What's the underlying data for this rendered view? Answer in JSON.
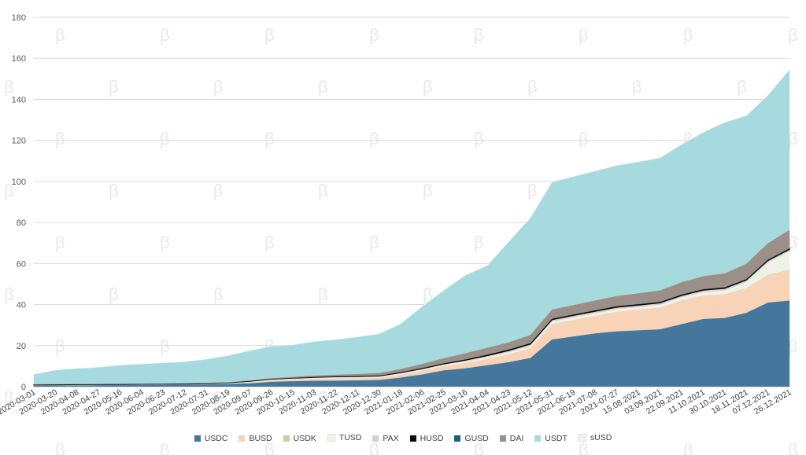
{
  "chart_data": {
    "type": "area",
    "stacked": true,
    "grid": "horizontal",
    "legend_position": "bottom",
    "ylim": [
      0,
      180
    ],
    "yticks": [
      0,
      20,
      40,
      60,
      80,
      100,
      120,
      140,
      160,
      180
    ],
    "x_tick_labels": [
      "2020-03-01",
      "2020-03-20",
      "2020-04-08",
      "2020-04-27",
      "2020-05-16",
      "2020-06-04",
      "2020-06-23",
      "2020-07-12",
      "2020-07-31",
      "2020-08-19",
      "2020-09-07",
      "2020-09-26",
      "2020-10-15",
      "2020-11-03",
      "2020-11-22",
      "2020-12-11",
      "2020-12-30",
      "2021-01-18",
      "2021-02-06",
      "2021-02-25",
      "2021-03-16",
      "2021-04-04",
      "2021-04-23",
      "2021-05-12",
      "2021-05-31",
      "2021-06-19",
      "2021-07-08",
      "2021-07-27",
      "15.08.2021",
      "03.09.2021",
      "22.09.2021",
      "11.10.2021",
      "30.10.2021",
      "18.11.2021",
      "07.12.2021",
      "26.12.2021"
    ],
    "x": [
      "2020-03-01",
      "2020-03-20",
      "2020-04-08",
      "2020-04-27",
      "2020-05-16",
      "2020-06-04",
      "2020-06-23",
      "2020-07-12",
      "2020-07-31",
      "2020-08-19",
      "2020-09-07",
      "2020-09-26",
      "2020-10-15",
      "2020-11-03",
      "2020-11-22",
      "2020-12-11",
      "2020-12-30",
      "2021-01-18",
      "2021-02-06",
      "2021-02-25",
      "2021-03-16",
      "2021-04-04",
      "2021-04-23",
      "2021-05-12",
      "2021-05-31",
      "2021-06-19",
      "2021-07-08",
      "2021-07-27",
      "2021-08-15",
      "2021-09-03",
      "2021-09-22",
      "2021-10-11",
      "2021-10-30",
      "2021-11-18",
      "2021-12-07",
      "2021-12-26"
    ],
    "series": [
      {
        "name": "USDC",
        "color": "#44779b",
        "values": [
          0.5,
          0.6,
          0.7,
          0.75,
          0.8,
          0.85,
          0.9,
          1.0,
          1.1,
          1.3,
          1.7,
          2.4,
          2.7,
          2.9,
          3.0,
          3.1,
          3.3,
          4.5,
          6.0,
          8.0,
          9.0,
          10.5,
          12.0,
          14.0,
          23.0,
          24.5,
          26.0,
          27.0,
          27.5,
          28.0,
          30.5,
          33.0,
          33.5,
          36.0,
          41.0,
          42.0
        ]
      },
      {
        "name": "BUSD",
        "color": "#f8d3b7",
        "values": [
          0.1,
          0.1,
          0.1,
          0.1,
          0.1,
          0.1,
          0.1,
          0.1,
          0.15,
          0.2,
          0.4,
          0.6,
          0.8,
          0.9,
          1.0,
          1.0,
          1.1,
          1.3,
          1.7,
          2.0,
          2.5,
          3.0,
          3.8,
          4.8,
          7.5,
          8.0,
          8.5,
          9.5,
          10.0,
          10.5,
          11.5,
          11.5,
          11.5,
          12.0,
          13.5,
          15.0
        ]
      },
      {
        "name": "USDK",
        "color": "#c6cfa2",
        "values": [
          0.02,
          0.02,
          0.02,
          0.02,
          0.02,
          0.02,
          0.02,
          0.02,
          0.02,
          0.02,
          0.02,
          0.02,
          0.02,
          0.02,
          0.02,
          0.02,
          0.02,
          0.02,
          0.02,
          0.02,
          0.02,
          0.02,
          0.02,
          0.02,
          0.02,
          0.02,
          0.02,
          0.02,
          0.02,
          0.02,
          0.02,
          0.02,
          0.02,
          0.02,
          0.02,
          0.02
        ]
      },
      {
        "name": "TUSD",
        "color": "#eef3e8",
        "values": [
          0.1,
          0.1,
          0.1,
          0.1,
          0.1,
          0.1,
          0.1,
          0.1,
          0.1,
          0.2,
          0.3,
          0.4,
          0.4,
          0.4,
          0.5,
          0.5,
          0.5,
          0.6,
          0.6,
          0.6,
          0.8,
          0.9,
          1.0,
          1.1,
          1.2,
          1.3,
          1.3,
          1.3,
          1.3,
          1.4,
          1.5,
          1.6,
          2.0,
          3.0,
          6.0,
          9.0
        ]
      },
      {
        "name": "PAX",
        "color": "#d9cccc",
        "values": [
          0.1,
          0.1,
          0.1,
          0.1,
          0.1,
          0.1,
          0.1,
          0.1,
          0.1,
          0.1,
          0.2,
          0.2,
          0.2,
          0.3,
          0.3,
          0.3,
          0.3,
          0.4,
          0.5,
          0.5,
          0.6,
          0.7,
          0.8,
          0.8,
          0.9,
          0.9,
          0.9,
          0.9,
          0.9,
          0.9,
          0.9,
          0.9,
          0.9,
          0.9,
          0.9,
          0.9
        ]
      },
      {
        "name": "HUSD",
        "color": "#0a0a0a",
        "values": [
          0.2,
          0.2,
          0.2,
          0.2,
          0.2,
          0.2,
          0.2,
          0.2,
          0.2,
          0.2,
          0.2,
          0.2,
          0.2,
          0.25,
          0.25,
          0.25,
          0.25,
          0.3,
          0.3,
          0.3,
          0.4,
          0.5,
          0.5,
          0.5,
          0.5,
          0.5,
          0.5,
          0.5,
          0.5,
          0.5,
          0.5,
          0.5,
          0.5,
          0.5,
          0.5,
          0.5
        ]
      },
      {
        "name": "GUSD",
        "color": "#1f5f84",
        "values": [
          0.02,
          0.02,
          0.02,
          0.02,
          0.02,
          0.02,
          0.02,
          0.02,
          0.02,
          0.02,
          0.02,
          0.02,
          0.02,
          0.02,
          0.02,
          0.02,
          0.02,
          0.02,
          0.02,
          0.02,
          0.02,
          0.02,
          0.02,
          0.02,
          0.02,
          0.02,
          0.02,
          0.02,
          0.02,
          0.02,
          0.02,
          0.02,
          0.02,
          0.02,
          0.02,
          0.02
        ]
      },
      {
        "name": "DAI",
        "color": "#9b8f87",
        "values": [
          0.1,
          0.1,
          0.1,
          0.1,
          0.1,
          0.1,
          0.1,
          0.1,
          0.1,
          0.1,
          0.2,
          0.3,
          0.5,
          0.7,
          0.8,
          1.0,
          1.2,
          1.5,
          2.0,
          2.5,
          3.0,
          3.3,
          3.5,
          4.0,
          4.5,
          4.6,
          4.8,
          5.0,
          5.3,
          5.6,
          6.0,
          6.3,
          6.8,
          7.5,
          8.0,
          9.0
        ]
      },
      {
        "name": "USDT",
        "color": "#a6dadf",
        "values": [
          4.8,
          6.8,
          7.5,
          8.0,
          9.0,
          9.5,
          10.0,
          10.5,
          11.5,
          13.0,
          14.5,
          15.5,
          15.5,
          16.5,
          17.0,
          18.0,
          19.0,
          22.0,
          28.0,
          33.0,
          38.0,
          40.0,
          49.0,
          57.0,
          62.0,
          62.5,
          63.0,
          63.5,
          64.0,
          64.5,
          67.0,
          70.0,
          73.5,
          72.0,
          72.0,
          78.0
        ]
      },
      {
        "name": "sUSD",
        "color": "#f2f2f2",
        "values": [
          0.1,
          0.1,
          0.1,
          0.1,
          0.1,
          0.1,
          0.1,
          0.1,
          0.1,
          0.1,
          0.1,
          0.1,
          0.1,
          0.1,
          0.1,
          0.1,
          0.1,
          0.1,
          0.2,
          0.2,
          0.2,
          0.2,
          0.2,
          0.2,
          0.2,
          0.2,
          0.2,
          0.2,
          0.2,
          0.2,
          0.2,
          0.2,
          0.2,
          0.2,
          0.2,
          0.2
        ]
      }
    ]
  }
}
